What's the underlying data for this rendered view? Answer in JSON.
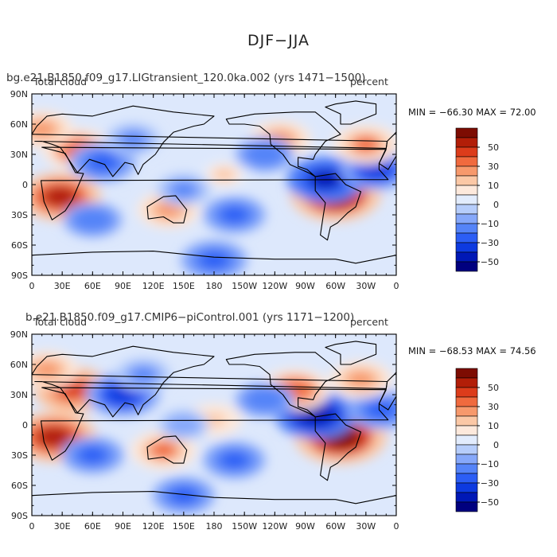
{
  "title": "DJF−JJA",
  "chart_data": [
    {
      "type": "heatmap",
      "case_title": "bg.e21.B1850.f09_g17.LIGtransient_120.0ka.002 (yrs 1471−1500)",
      "variable_label": "Total cloud",
      "units_label": "percent",
      "stats": "MIN = −66.30 MAX =  72.00",
      "min": -66.3,
      "max": 72.0,
      "x_ticks": [
        "0",
        "30E",
        "60E",
        "90E",
        "120E",
        "150E",
        "180",
        "150W",
        "120W",
        "90W",
        "60W",
        "30W",
        "0"
      ],
      "y_ticks": [
        "90N",
        "60N",
        "30N",
        "0",
        "30S",
        "60S",
        "90S"
      ],
      "colorbar_labels": [
        "50",
        "30",
        "10",
        "0",
        "−10",
        "−30",
        "−50"
      ],
      "xlim": [
        0,
        360
      ],
      "ylim": [
        -90,
        90
      ],
      "anomalies": [
        {
          "lon": 28,
          "lat": -12,
          "value": 60
        },
        {
          "lon": 300,
          "lat": -10,
          "value": 72
        },
        {
          "lon": 45,
          "lat": 35,
          "value": 45
        },
        {
          "lon": 10,
          "lat": 55,
          "value": 35
        },
        {
          "lon": 290,
          "lat": 5,
          "value": -55
        },
        {
          "lon": 340,
          "lat": 15,
          "value": -45
        },
        {
          "lon": 70,
          "lat": 22,
          "value": -40
        },
        {
          "lon": 135,
          "lat": -25,
          "value": 35
        },
        {
          "lon": 190,
          "lat": 10,
          "value": 20
        },
        {
          "lon": 245,
          "lat": 45,
          "value": 35
        },
        {
          "lon": 330,
          "lat": 40,
          "value": 40
        },
        {
          "lon": 200,
          "lat": -30,
          "value": -35
        },
        {
          "lon": 60,
          "lat": -35,
          "value": -30
        },
        {
          "lon": 150,
          "lat": -5,
          "value": -25
        },
        {
          "lon": 180,
          "lat": -75,
          "value": -40
        },
        {
          "lon": 100,
          "lat": 45,
          "value": -25
        },
        {
          "lon": 230,
          "lat": 30,
          "value": -30
        }
      ]
    },
    {
      "type": "heatmap",
      "case_title": "b.e21.B1850.f09_g17.CMIP6−piControl.001 (yrs 1171−1200)",
      "variable_label": "Total cloud",
      "units_label": "percent",
      "stats": "MIN = −68.53 MAX =  74.56",
      "min": -68.53,
      "max": 74.56,
      "x_ticks": [
        "0",
        "30E",
        "60E",
        "90E",
        "120E",
        "150E",
        "180",
        "150W",
        "120W",
        "90W",
        "60W",
        "30W",
        "0"
      ],
      "y_ticks": [
        "90N",
        "60N",
        "30N",
        "0",
        "30S",
        "60S",
        "90S"
      ],
      "colorbar_labels": [
        "50",
        "30",
        "10",
        "0",
        "−10",
        "−30",
        "−50"
      ],
      "xlim": [
        0,
        360
      ],
      "ylim": [
        -90,
        90
      ],
      "anomalies": [
        {
          "lon": 22,
          "lat": -12,
          "value": 65
        },
        {
          "lon": 305,
          "lat": -12,
          "value": 74
        },
        {
          "lon": 40,
          "lat": 35,
          "value": 55
        },
        {
          "lon": 15,
          "lat": 55,
          "value": 35
        },
        {
          "lon": 280,
          "lat": 10,
          "value": -60
        },
        {
          "lon": 345,
          "lat": 15,
          "value": -40
        },
        {
          "lon": 90,
          "lat": 30,
          "value": -50
        },
        {
          "lon": 130,
          "lat": -25,
          "value": 40
        },
        {
          "lon": 180,
          "lat": 5,
          "value": 25
        },
        {
          "lon": 260,
          "lat": 35,
          "value": 45
        },
        {
          "lon": 325,
          "lat": 45,
          "value": 35
        },
        {
          "lon": 200,
          "lat": -35,
          "value": -35
        },
        {
          "lon": 60,
          "lat": -30,
          "value": -35
        },
        {
          "lon": 150,
          "lat": 0,
          "value": -20
        },
        {
          "lon": 150,
          "lat": -70,
          "value": -35
        },
        {
          "lon": 110,
          "lat": 50,
          "value": -25
        },
        {
          "lon": 230,
          "lat": 25,
          "value": -30
        }
      ]
    }
  ]
}
